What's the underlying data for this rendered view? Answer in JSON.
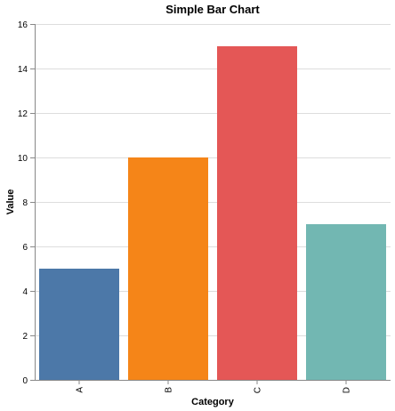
{
  "chart_data": {
    "type": "bar",
    "title": "Simple Bar Chart",
    "xlabel": "Category",
    "ylabel": "Value",
    "categories": [
      "A",
      "B",
      "C",
      "D"
    ],
    "values": [
      5,
      10,
      15,
      7
    ],
    "colors": [
      "#4c78a8",
      "#f58518",
      "#e45756",
      "#72b7b2"
    ],
    "ylim": [
      0,
      16
    ],
    "yticks": [
      0,
      2,
      4,
      6,
      8,
      10,
      12,
      14,
      16
    ],
    "grid": true,
    "legend": "none"
  }
}
